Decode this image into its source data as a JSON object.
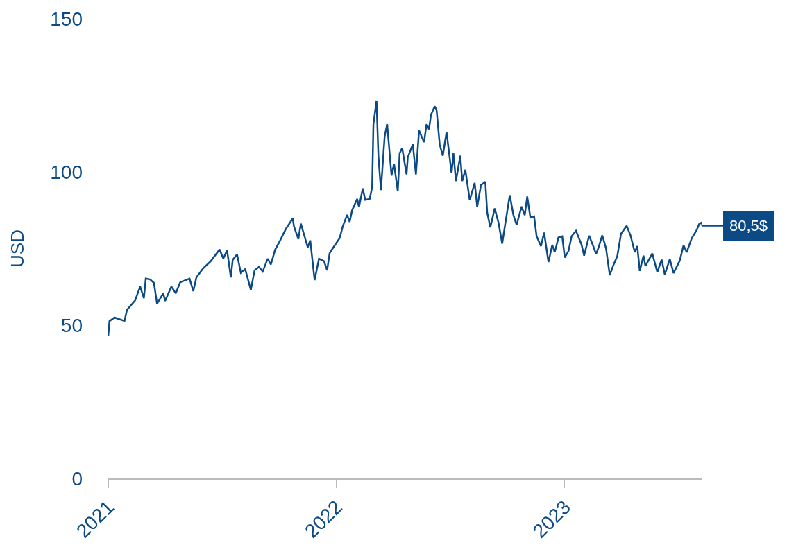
{
  "chart_data": {
    "type": "line",
    "ylabel": "USD",
    "x": [
      "2021-01-01",
      "2021-01-03",
      "2021-01-11",
      "2021-01-27",
      "2021-01-31",
      "2021-02-13",
      "2021-02-21",
      "2021-02-27",
      "2021-03-02",
      "2021-03-09",
      "2021-03-15",
      "2021-03-20",
      "2021-03-30",
      "2021-04-02",
      "2021-04-12",
      "2021-04-19",
      "2021-04-26",
      "2021-05-11",
      "2021-05-17",
      "2021-05-22",
      "2021-06-02",
      "2021-06-14",
      "2021-06-28",
      "2021-07-04",
      "2021-07-10",
      "2021-07-16",
      "2021-07-19",
      "2021-07-26",
      "2021-08-01",
      "2021-08-08",
      "2021-08-17",
      "2021-08-23",
      "2021-08-30",
      "2021-09-05",
      "2021-09-13",
      "2021-09-18",
      "2021-09-25",
      "2021-10-02",
      "2021-10-12",
      "2021-10-23",
      "2021-10-25",
      "2021-11-01",
      "2021-11-05",
      "2021-11-16",
      "2021-11-20",
      "2021-11-27",
      "2021-12-04",
      "2021-12-12",
      "2021-12-17",
      "2021-12-21",
      "2021-12-27",
      "2022-01-06",
      "2022-01-11",
      "2022-01-18",
      "2022-01-22",
      "2022-01-26",
      "2022-02-03",
      "2022-02-06",
      "2022-02-12",
      "2022-02-16",
      "2022-02-23",
      "2022-02-27",
      "2022-03-01",
      "2022-03-06",
      "2022-03-09",
      "2022-03-13",
      "2022-03-19",
      "2022-03-23",
      "2022-03-30",
      "2022-04-03",
      "2022-04-09",
      "2022-04-12",
      "2022-04-16",
      "2022-04-23",
      "2022-04-25",
      "2022-05-03",
      "2022-05-08",
      "2022-05-13",
      "2022-05-21",
      "2022-05-25",
      "2022-05-29",
      "2022-06-01",
      "2022-06-07",
      "2022-06-10",
      "2022-06-15",
      "2022-06-20",
      "2022-06-26",
      "2022-07-04",
      "2022-07-07",
      "2022-07-11",
      "2022-07-18",
      "2022-07-21",
      "2022-07-26",
      "2022-08-02",
      "2022-08-10",
      "2022-08-14",
      "2022-08-20",
      "2022-08-27",
      "2022-08-30",
      "2022-09-04",
      "2022-09-11",
      "2022-09-17",
      "2022-09-23",
      "2022-09-27",
      "2022-10-05",
      "2022-10-11",
      "2022-10-16",
      "2022-10-24",
      "2022-10-29",
      "2022-11-02",
      "2022-11-07",
      "2022-11-13",
      "2022-11-17",
      "2022-11-24",
      "2022-11-29",
      "2022-12-06",
      "2022-12-12",
      "2022-12-16",
      "2022-12-22",
      "2022-12-28",
      "2023-01-01",
      "2023-01-07",
      "2023-01-12",
      "2023-01-19",
      "2023-01-28",
      "2023-02-01",
      "2023-02-09",
      "2023-02-16",
      "2023-02-20",
      "2023-02-24",
      "2023-03-02",
      "2023-03-08",
      "2023-03-14",
      "2023-03-20",
      "2023-03-26",
      "2023-04-01",
      "2023-04-10",
      "2023-04-16",
      "2023-04-23",
      "2023-04-27",
      "2023-05-01",
      "2023-05-07",
      "2023-05-10",
      "2023-05-21",
      "2023-05-29",
      "2023-06-05",
      "2023-06-10",
      "2023-06-18",
      "2023-06-24",
      "2023-07-04",
      "2023-07-10",
      "2023-07-15",
      "2023-07-23",
      "2023-07-31",
      "2023-08-04",
      "2023-08-08",
      "2023-08-09"
    ],
    "series": [
      {
        "color": "#0b4a85",
        "values": [
          46.4,
          51.3,
          52.5,
          51.4,
          55,
          58.1,
          62.6,
          58.8,
          65.2,
          64.9,
          63.8,
          57,
          60.4,
          57.9,
          62.6,
          60.4,
          64,
          65.2,
          61.1,
          65.6,
          68.6,
          70.9,
          74.7,
          71.7,
          74.5,
          65.6,
          71.3,
          73.1,
          67.1,
          68.3,
          61.5,
          67.9,
          69,
          67.5,
          71.7,
          69.8,
          74.7,
          77.3,
          81.4,
          84.8,
          82.2,
          78.1,
          83.1,
          75.4,
          77.7,
          64.7,
          71.7,
          70.9,
          67.9,
          73.5,
          75.4,
          78.4,
          82.2,
          86,
          83.7,
          87.5,
          91.2,
          88.6,
          94.6,
          90.9,
          91.2,
          95,
          115.4,
          123.3,
          105.2,
          94.1,
          111.6,
          115.6,
          98.8,
          102.6,
          93.7,
          106.1,
          107.8,
          99.2,
          104.8,
          109,
          99.2,
          113.5,
          109.7,
          115.6,
          113.9,
          118.6,
          121.4,
          120.3,
          109,
          105.3,
          113,
          99.6,
          106.1,
          97,
          105.3,
          97,
          100.7,
          90.8,
          96.4,
          88.6,
          95.7,
          96.8,
          86.7,
          81.9,
          88.1,
          83.5,
          76.6,
          81.9,
          92.4,
          85.9,
          82.7,
          88.7,
          85.9,
          92,
          85.1,
          85.5,
          79,
          75.8,
          80.2,
          70.6,
          76.2,
          73.8,
          78.6,
          79,
          72.1,
          74.2,
          79,
          80.8,
          76.2,
          72.7,
          79.2,
          75.6,
          73.2,
          75.3,
          79.3,
          75.1,
          66.3,
          69.7,
          72.5,
          79.8,
          82.4,
          79.4,
          73.8,
          75.8,
          67.7,
          72.7,
          69.3,
          73.4,
          67.3,
          71.4,
          66.5,
          71.6,
          67,
          71.1,
          76.1,
          73.8,
          78.3,
          81,
          83,
          83.5,
          82.4
        ]
      }
    ],
    "xlim": [
      "2021-01-01",
      "2023-08-09"
    ],
    "xticks": [
      {
        "value": "2021-01-01",
        "label": "2021"
      },
      {
        "value": "2022-01-01",
        "label": "2022"
      },
      {
        "value": "2023-01-01",
        "label": "2023"
      }
    ],
    "ylim": [
      0,
      150
    ],
    "yticks": [
      0,
      50,
      100,
      150
    ],
    "annotations": [
      "80,5$"
    ]
  }
}
